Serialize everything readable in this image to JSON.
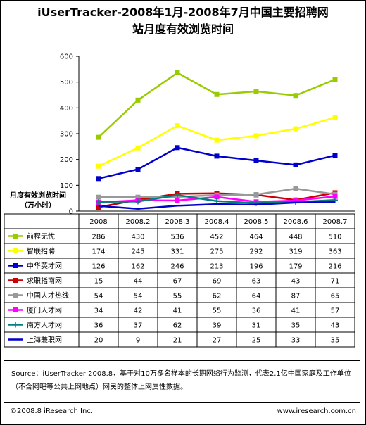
{
  "chart_data": {
    "type": "line",
    "title": "iUserTracker-2008年1月-2008年7月中国主要招聘网站月度有效浏览时间",
    "title_line1": "iUserTracker-2008年1月-2008年7月中国主要招聘网",
    "title_line2": "站月度有效浏览时间",
    "ylabel_line1": "月度有效浏览时间",
    "ylabel_line2": "（万小时）",
    "ylim": [
      0,
      600
    ],
    "yticks": [
      "0",
      "100",
      "200",
      "300",
      "400",
      "500",
      "600"
    ],
    "categories": [
      "2008",
      "2008.2",
      "2008.3",
      "2008.4",
      "2008.5",
      "2008.6",
      "2008.7"
    ],
    "legend_placement": "table-left",
    "grid": false,
    "series": [
      {
        "name": "前程无忧",
        "color": "#99cc00",
        "marker": "square",
        "values": [
          286,
          430,
          536,
          452,
          464,
          448,
          510
        ]
      },
      {
        "name": "智联招聘",
        "color": "#ffff00",
        "marker": "square",
        "values": [
          174,
          245,
          331,
          275,
          292,
          319,
          363
        ]
      },
      {
        "name": "中华英才网",
        "color": "#0000cc",
        "marker": "square",
        "values": [
          126,
          162,
          246,
          213,
          196,
          179,
          216
        ]
      },
      {
        "name": "求职指南网",
        "color": "#cc0000",
        "marker": "square",
        "values": [
          15,
          44,
          67,
          69,
          63,
          43,
          71
        ]
      },
      {
        "name": "中国人才热线",
        "color": "#999999",
        "marker": "square",
        "values": [
          54,
          54,
          55,
          62,
          64,
          87,
          65
        ]
      },
      {
        "name": "厦门人才网",
        "color": "#ff00ff",
        "marker": "square",
        "values": [
          34,
          42,
          41,
          55,
          36,
          41,
          57
        ]
      },
      {
        "name": "南方人才网",
        "color": "#008080",
        "marker": "plus",
        "values": [
          36,
          37,
          62,
          39,
          31,
          35,
          43
        ]
      },
      {
        "name": "上海兼职网",
        "color": "#0000cc",
        "marker": "line",
        "values": [
          20,
          9,
          21,
          27,
          25,
          33,
          35
        ]
      }
    ]
  },
  "source_text": "Source：iUserTracker 2008.8，基于对10万多名样本的长期网络行为监测，代表2.1亿中国家庭及工作单位（不含网吧等公共上网地点）网民的整体上网属性数据。",
  "footer": {
    "copyright": "©2008.8 iResearch Inc.",
    "website": "www.iresearch.com.cn"
  }
}
